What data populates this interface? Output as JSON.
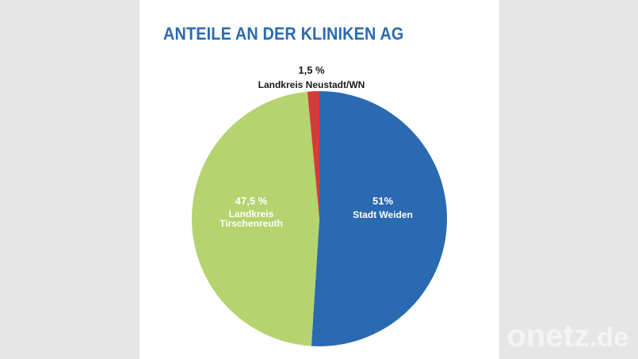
{
  "title": "ANTEILE AN DER KLINIKEN AG",
  "watermark": {
    "name": "onetz",
    "tld": ".de"
  },
  "chart_data": {
    "type": "pie",
    "title": "ANTEILE AN DER KLINIKEN AG",
    "slices": [
      {
        "value": 51,
        "value_label": "51%",
        "label_lines": [
          "Stadt Weiden"
        ],
        "color": "#2a6ab1",
        "label_color": "#ffffff"
      },
      {
        "value": 47.5,
        "value_label": "47,5 %",
        "label_lines": [
          "Landkreis",
          "Tirschenreuth"
        ],
        "color": "#b5d36f",
        "label_color": "#ffffff"
      },
      {
        "value": 1.5,
        "value_label": "1,5 %",
        "label_lines": [
          "Landkreis Neustadt/WN"
        ],
        "color": "#d63b37",
        "label_color": "#1a1a1a"
      }
    ]
  }
}
